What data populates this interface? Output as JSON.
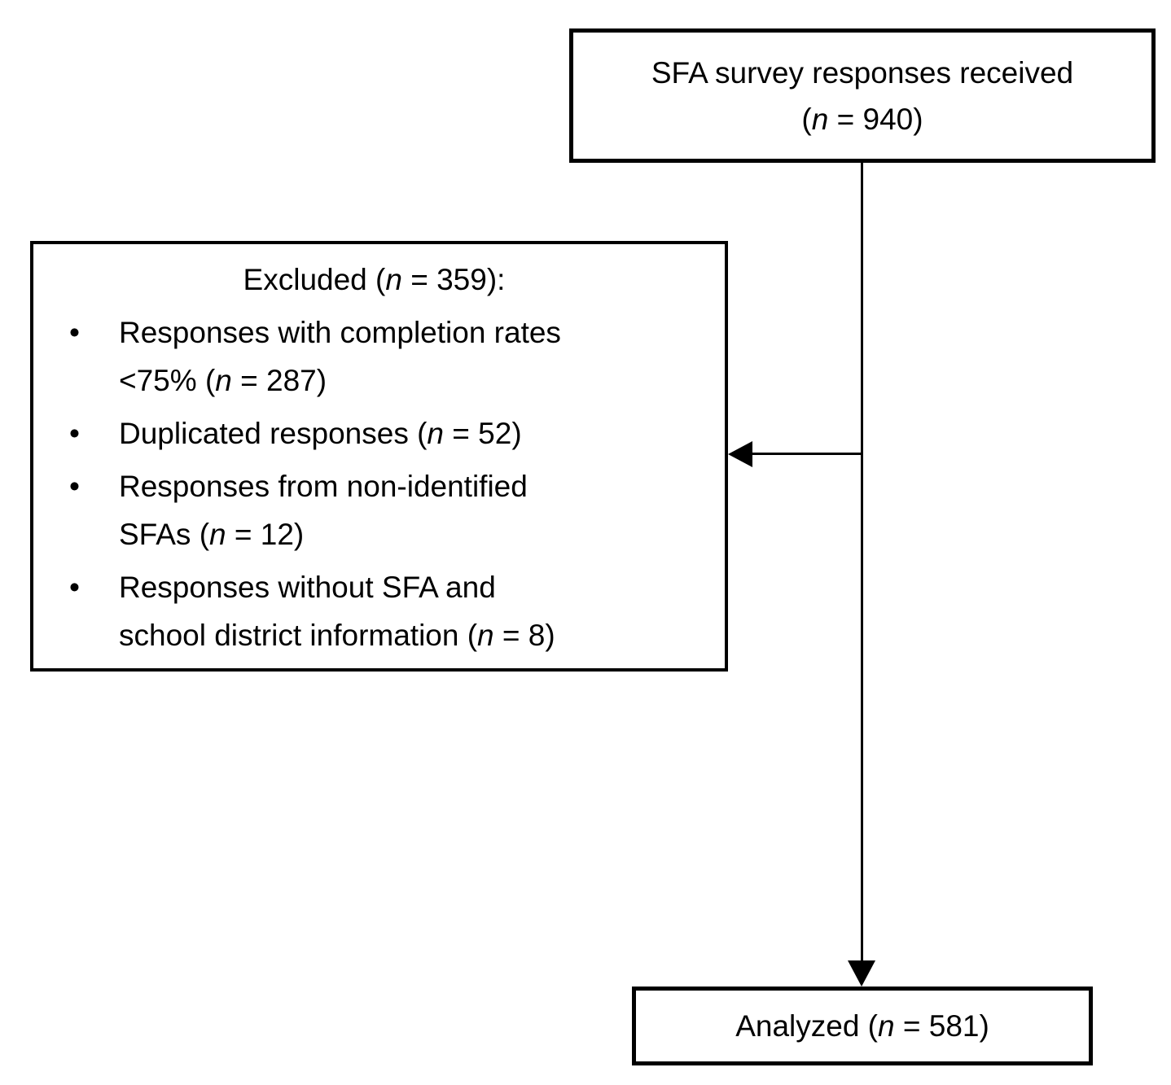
{
  "diagram": {
    "top_box": {
      "line1": "SFA survey responses received",
      "line2": {
        "pre": "(",
        "n": "n",
        "post": " = 940)"
      }
    },
    "excluded_box": {
      "title": {
        "pre": "Excluded (",
        "n": "n",
        "post": " = 359):"
      },
      "bullet": "•",
      "items": [
        {
          "pre": "Responses with completion rates\n<75% (",
          "n": "n",
          "post": " = 287)"
        },
        {
          "pre": "Duplicated responses (",
          "n": "n",
          "post": " = 52)"
        },
        {
          "pre": "Responses from non-identified\nSFAs (",
          "n": "n",
          "post": " = 12)"
        },
        {
          "pre": "Responses without SFA and\nschool district information (",
          "n": "n",
          "post": " = 8)"
        }
      ]
    },
    "analyzed_box": {
      "pre": "Analyzed (",
      "n": "n",
      "post": " = 581)"
    },
    "colors": {
      "line": "#000000",
      "background": "#ffffff",
      "text": "#000000"
    }
  }
}
